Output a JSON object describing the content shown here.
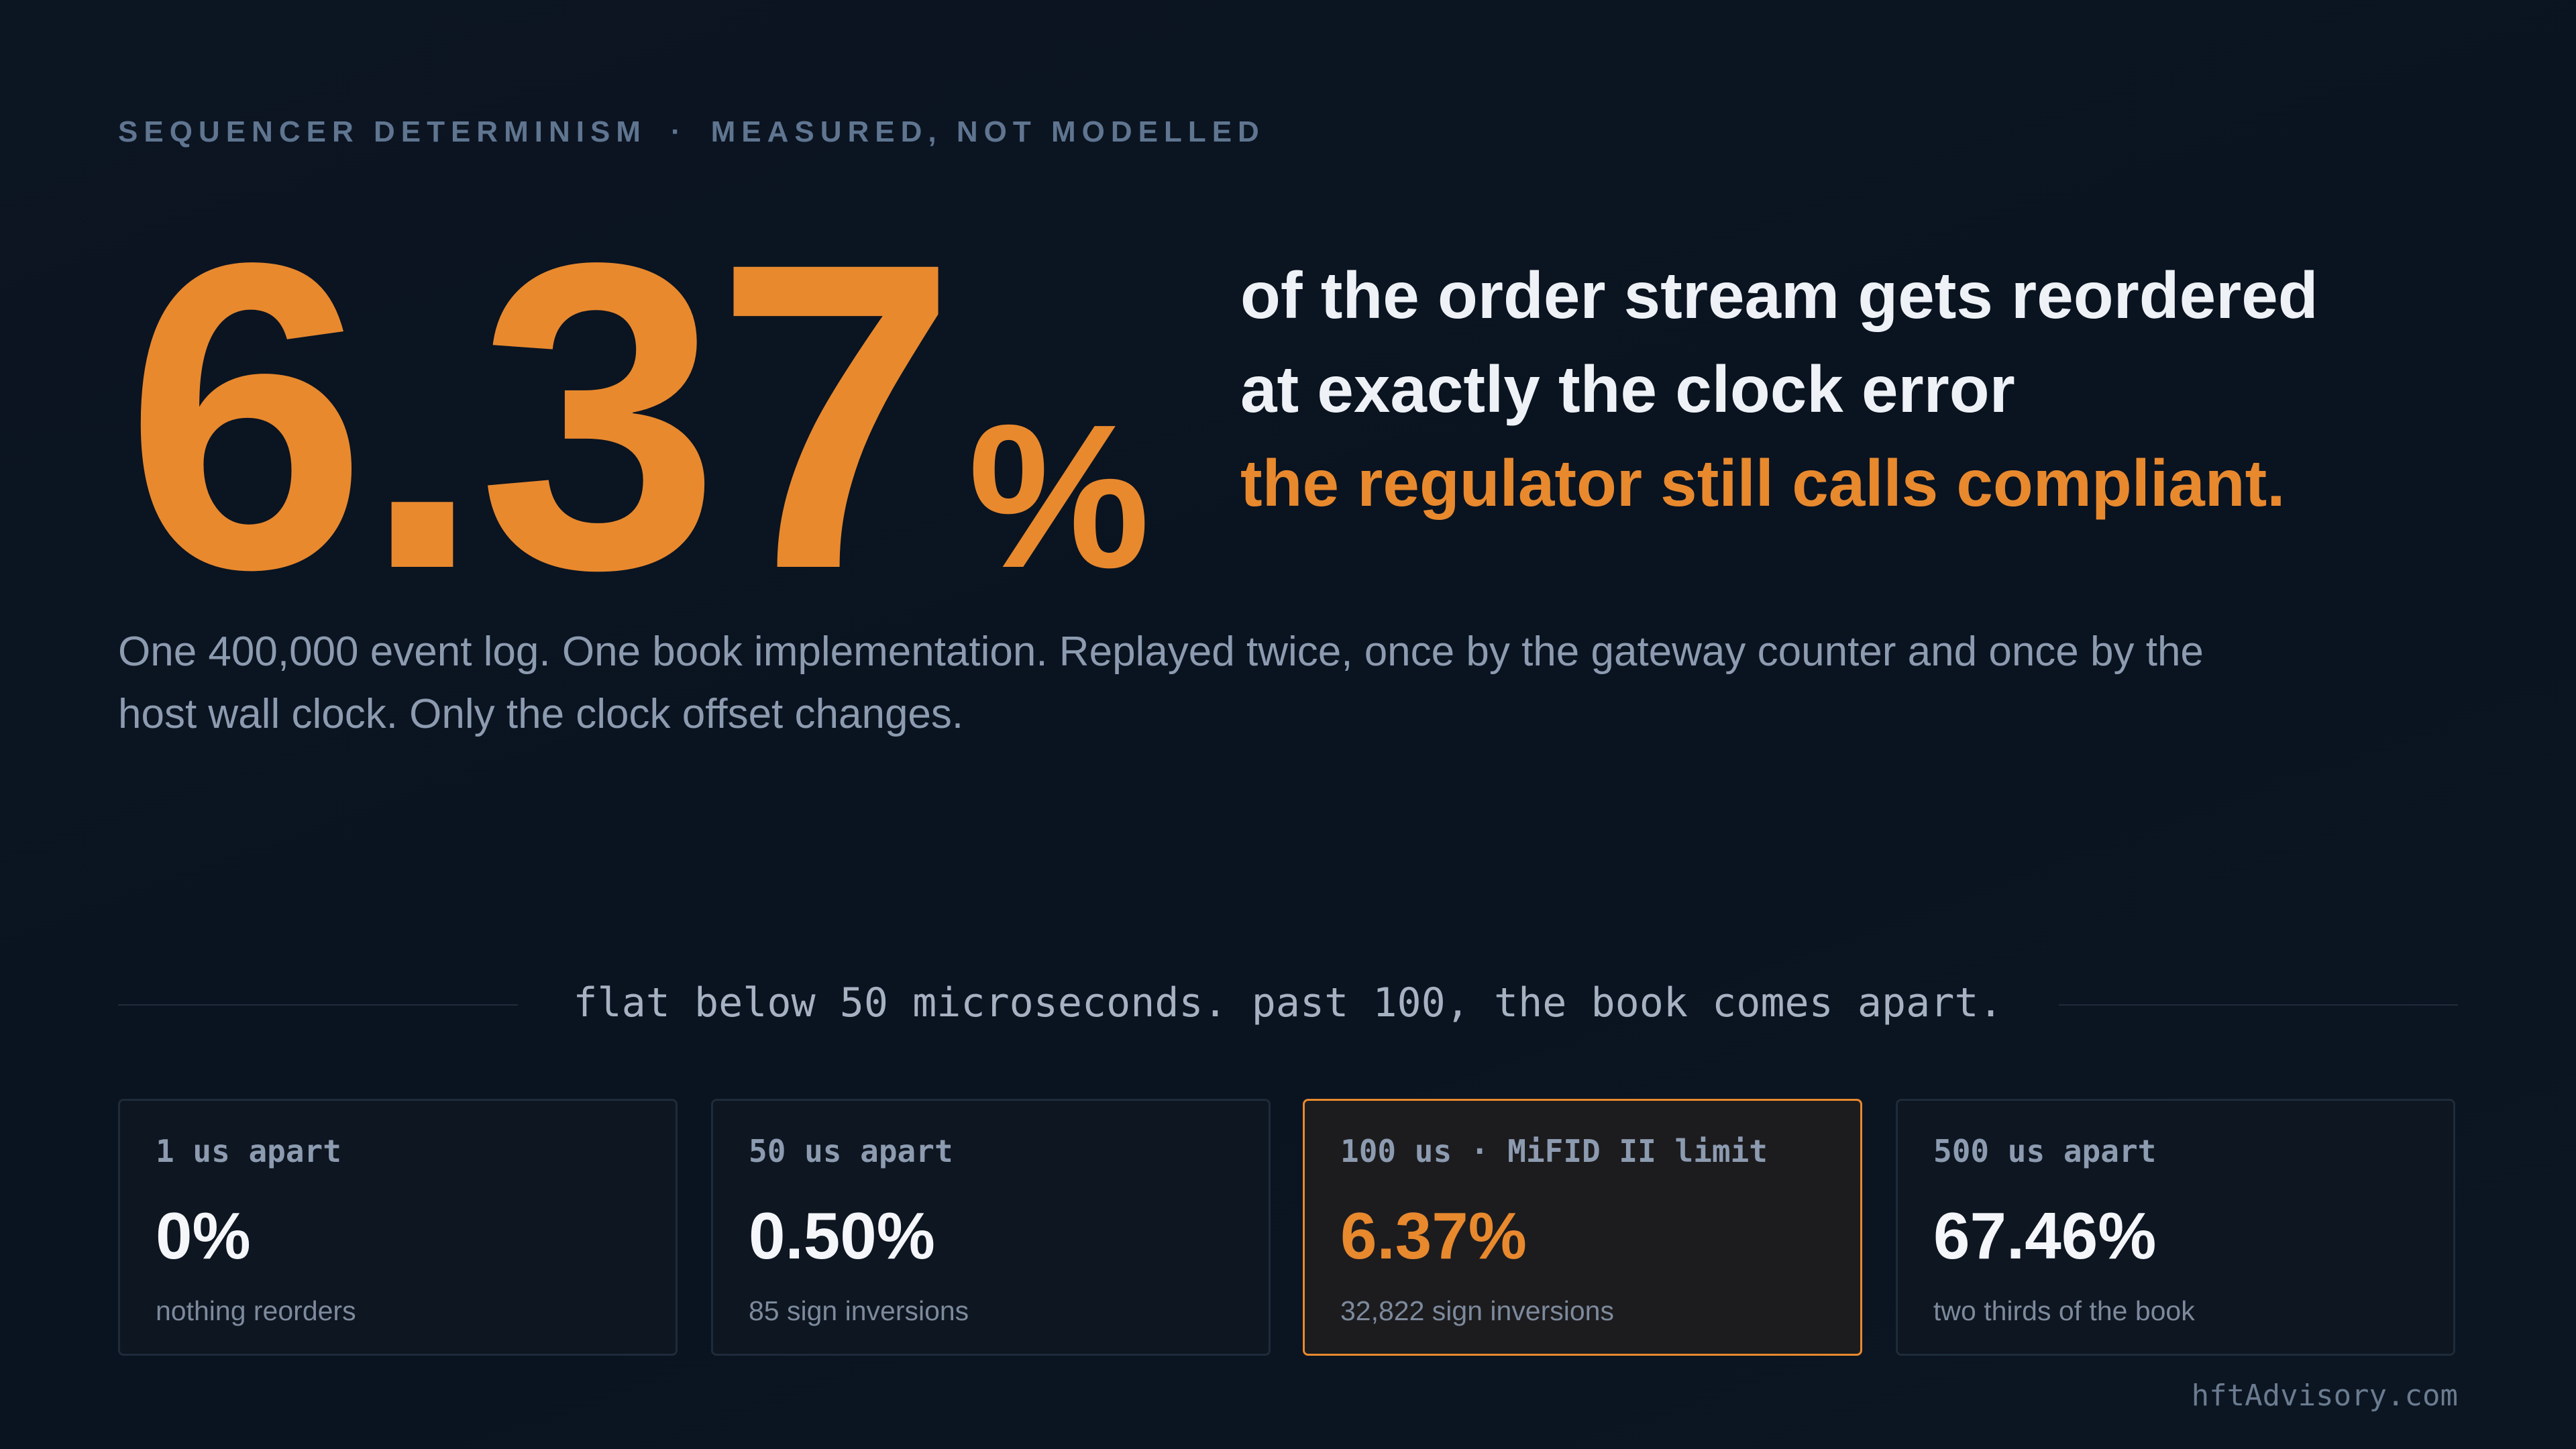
{
  "header": {
    "kicker": "SEQUENCER DETERMINISM",
    "separator": "·",
    "kicker_note": "MEASURED, NOT MODELLED"
  },
  "hero": {
    "figure": "6.37",
    "unit": "%",
    "lines": [
      "of the order stream gets reordered",
      "at exactly the clock error"
    ],
    "highlight": "the regulator still calls compliant."
  },
  "description": "One 400,000 event log. One book implementation. Replayed twice, once by the gateway counter and once by the host wall clock. Only the clock offset changes.",
  "divider_caption": "flat below 50 microseconds. past 100, the book comes apart.",
  "cards": [
    {
      "label": "1 us apart",
      "value": "0%",
      "note": "nothing reorders"
    },
    {
      "label": "50 us apart",
      "value": "0.50%",
      "note": "85 sign inversions"
    },
    {
      "label": "100 us · MiFID II limit",
      "value": "6.37%",
      "note": "32,822 sign inversions"
    },
    {
      "label": "500 us apart",
      "value": "67.46%",
      "note": "two thirds of the book"
    }
  ],
  "footer": "hftAdvisory.com"
}
